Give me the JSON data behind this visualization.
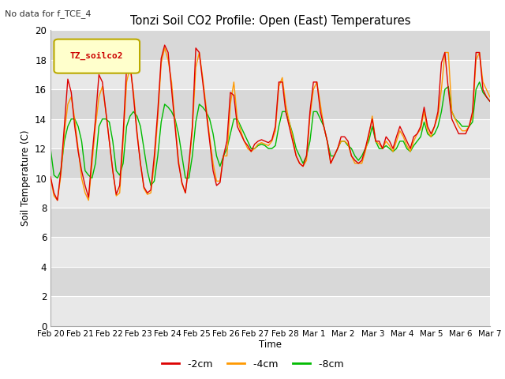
{
  "title": "Tonzi Soil CO2 Profile: Open (East) Temperatures",
  "subtitle": "No data for f_TCE_4",
  "ylabel": "Soil Temperature (C)",
  "xlabel": "Time",
  "legend_label": "TZ_soilco2",
  "ylim": [
    0,
    20
  ],
  "yticks": [
    0,
    2,
    4,
    6,
    8,
    10,
    12,
    14,
    16,
    18,
    20
  ],
  "xtick_labels": [
    "Feb 20",
    "Feb 21",
    "Feb 22",
    "Feb 23",
    "Feb 24",
    "Feb 25",
    "Feb 26",
    "Feb 27",
    "Feb 28",
    "Mar 1",
    "Mar 2",
    "Mar 3",
    "Mar 4",
    "Mar 5",
    "Mar 6",
    "Mar 7"
  ],
  "colors": {
    "neg2cm": "#dd0000",
    "neg4cm": "#ff9900",
    "neg8cm": "#00bb00",
    "outer_bg": "#ffffff",
    "plot_bg": "#e8e8e8",
    "band_light": "#e8e8e8",
    "band_dark": "#d8d8d8",
    "grid_line": "#ffffff",
    "legend_box_face": "#ffffcc",
    "legend_box_edge": "#bbaa00"
  },
  "series": {
    "neg2cm": [
      10.1,
      9.0,
      8.5,
      10.5,
      13.5,
      16.7,
      15.8,
      13.5,
      11.8,
      10.5,
      9.5,
      8.7,
      11.5,
      14.0,
      17.0,
      16.5,
      14.5,
      12.5,
      10.5,
      8.9,
      9.5,
      13.0,
      17.5,
      17.8,
      15.5,
      13.0,
      11.0,
      9.4,
      9.0,
      9.2,
      11.5,
      14.5,
      18.1,
      19.0,
      18.5,
      16.0,
      13.5,
      11.0,
      9.7,
      9.0,
      11.0,
      13.5,
      18.8,
      18.5,
      16.5,
      14.5,
      12.5,
      10.5,
      9.5,
      9.7,
      11.5,
      12.5,
      15.8,
      15.6,
      13.5,
      13.0,
      12.5,
      12.2,
      11.8,
      12.3,
      12.5,
      12.6,
      12.5,
      12.4,
      12.6,
      13.5,
      16.5,
      16.5,
      14.5,
      13.5,
      12.5,
      11.5,
      11.0,
      10.8,
      11.5,
      14.5,
      16.5,
      16.5,
      14.5,
      13.5,
      12.5,
      11.0,
      11.5,
      12.0,
      12.8,
      12.8,
      12.5,
      11.5,
      11.2,
      11.0,
      11.2,
      12.0,
      13.0,
      14.0,
      12.5,
      12.5,
      12.0,
      12.8,
      12.5,
      12.0,
      12.8,
      13.5,
      13.0,
      12.5,
      12.0,
      12.8,
      13.0,
      13.5,
      14.8,
      13.5,
      13.0,
      13.5,
      14.5,
      17.8,
      18.5,
      16.0,
      14.0,
      13.5,
      13.0,
      13.0,
      13.0,
      13.5,
      14.5,
      18.5,
      18.5,
      16.0,
      15.5,
      15.2
    ],
    "neg4cm": [
      10.0,
      8.8,
      8.5,
      10.2,
      13.0,
      15.0,
      15.5,
      14.0,
      12.0,
      10.0,
      9.0,
      8.5,
      11.0,
      13.5,
      15.5,
      16.2,
      14.5,
      12.5,
      10.5,
      8.8,
      9.0,
      12.5,
      16.5,
      17.5,
      15.8,
      13.2,
      11.0,
      9.3,
      8.9,
      9.0,
      11.0,
      14.0,
      17.8,
      18.8,
      18.0,
      16.5,
      13.8,
      11.2,
      9.6,
      9.0,
      10.8,
      13.2,
      17.5,
      18.5,
      16.8,
      14.8,
      12.8,
      11.0,
      9.8,
      9.8,
      11.5,
      11.5,
      15.0,
      16.5,
      14.0,
      13.2,
      12.5,
      12.0,
      11.8,
      12.0,
      12.3,
      12.4,
      12.3,
      12.2,
      12.5,
      13.2,
      16.2,
      16.8,
      15.0,
      13.8,
      12.8,
      11.5,
      11.0,
      10.8,
      11.2,
      14.2,
      16.0,
      16.5,
      15.0,
      13.5,
      12.5,
      11.0,
      11.5,
      12.0,
      12.5,
      12.5,
      12.3,
      11.5,
      11.0,
      11.0,
      11.0,
      11.8,
      12.8,
      14.2,
      12.5,
      12.3,
      12.0,
      12.5,
      12.2,
      11.8,
      12.5,
      13.2,
      12.8,
      12.2,
      11.8,
      12.5,
      13.0,
      13.3,
      14.5,
      13.2,
      12.8,
      13.5,
      14.2,
      16.0,
      18.5,
      18.5,
      14.5,
      14.0,
      13.5,
      13.2,
      13.2,
      13.5,
      14.2,
      18.0,
      18.5,
      16.5,
      16.0,
      15.5
    ],
    "neg8cm": [
      12.0,
      10.2,
      10.0,
      10.5,
      12.5,
      13.5,
      14.0,
      14.0,
      13.5,
      12.5,
      10.5,
      10.2,
      10.0,
      11.0,
      13.5,
      14.0,
      14.0,
      13.8,
      12.5,
      10.5,
      10.2,
      11.0,
      13.5,
      14.2,
      14.5,
      14.2,
      13.5,
      12.0,
      10.5,
      9.5,
      9.8,
      11.5,
      13.8,
      15.0,
      14.8,
      14.5,
      14.0,
      13.0,
      11.5,
      10.0,
      10.0,
      11.5,
      13.8,
      15.0,
      14.8,
      14.5,
      14.0,
      13.0,
      11.5,
      10.8,
      11.5,
      12.0,
      13.0,
      14.0,
      14.0,
      13.5,
      13.0,
      12.5,
      12.0,
      12.0,
      12.2,
      12.3,
      12.2,
      12.0,
      12.0,
      12.2,
      13.5,
      14.5,
      14.5,
      13.8,
      13.0,
      12.0,
      11.5,
      11.0,
      11.5,
      12.5,
      14.5,
      14.5,
      14.0,
      13.5,
      12.5,
      11.5,
      11.5,
      12.0,
      12.5,
      12.5,
      12.2,
      12.0,
      11.5,
      11.2,
      11.5,
      12.0,
      12.5,
      13.5,
      12.5,
      12.0,
      12.0,
      12.2,
      12.0,
      11.8,
      12.0,
      12.5,
      12.5,
      12.0,
      11.8,
      12.2,
      12.5,
      12.8,
      13.8,
      13.0,
      12.8,
      13.0,
      13.5,
      14.5,
      16.0,
      16.2,
      14.5,
      14.0,
      13.8,
      13.5,
      13.5,
      13.5,
      13.8,
      16.0,
      16.5,
      15.8,
      15.5,
      15.2
    ]
  }
}
